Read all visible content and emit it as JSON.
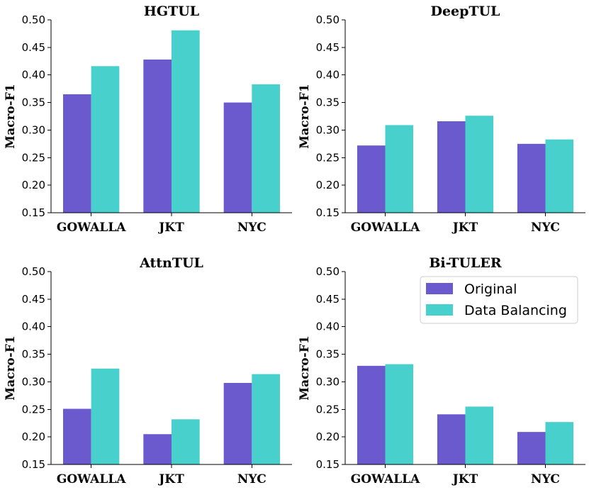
{
  "colors": {
    "original": "#6a5acd",
    "balanced": "#48d1cc"
  },
  "legend": {
    "placement": "top-right of Bi-TULER panel",
    "items": [
      "Original",
      "Data Balancing"
    ]
  },
  "chart_data": [
    {
      "type": "bar",
      "title": "HGTUL",
      "ylabel": "Macro-F1",
      "ylim": [
        0.15,
        0.5
      ],
      "yticks": [
        "0.15",
        "0.20",
        "0.25",
        "0.30",
        "0.35",
        "0.40",
        "0.45",
        "0.50"
      ],
      "categories": [
        "GOWALLA",
        "JKT",
        "NYC"
      ],
      "series": [
        {
          "name": "Original",
          "values": [
            0.365,
            0.428,
            0.35
          ]
        },
        {
          "name": "Data Balancing",
          "values": [
            0.416,
            0.481,
            0.383
          ]
        }
      ]
    },
    {
      "type": "bar",
      "title": "DeepTUL",
      "ylabel": "Macro-F1",
      "ylim": [
        0.15,
        0.5
      ],
      "yticks": [
        "0.15",
        "0.20",
        "0.25",
        "0.30",
        "0.35",
        "0.40",
        "0.45",
        "0.50"
      ],
      "categories": [
        "GOWALLA",
        "JKT",
        "NYC"
      ],
      "series": [
        {
          "name": "Original",
          "values": [
            0.272,
            0.316,
            0.275
          ]
        },
        {
          "name": "Data Balancing",
          "values": [
            0.309,
            0.326,
            0.283
          ]
        }
      ]
    },
    {
      "type": "bar",
      "title": "AttnTUL",
      "ylabel": "Macro-F1",
      "ylim": [
        0.15,
        0.5
      ],
      "yticks": [
        "0.15",
        "0.20",
        "0.25",
        "0.30",
        "0.35",
        "0.40",
        "0.45",
        "0.50"
      ],
      "categories": [
        "GOWALLA",
        "JKT",
        "NYC"
      ],
      "series": [
        {
          "name": "Original",
          "values": [
            0.251,
            0.205,
            0.298
          ]
        },
        {
          "name": "Data Balancing",
          "values": [
            0.324,
            0.232,
            0.314
          ]
        }
      ]
    },
    {
      "type": "bar",
      "title": "Bi-TULER",
      "ylabel": "Macro-F1",
      "ylim": [
        0.15,
        0.5
      ],
      "yticks": [
        "0.15",
        "0.20",
        "0.25",
        "0.30",
        "0.35",
        "0.40",
        "0.45",
        "0.50"
      ],
      "categories": [
        "GOWALLA",
        "JKT",
        "NYC"
      ],
      "series": [
        {
          "name": "Original",
          "values": [
            0.329,
            0.241,
            0.209
          ]
        },
        {
          "name": "Data Balancing",
          "values": [
            0.332,
            0.255,
            0.227
          ]
        }
      ]
    }
  ]
}
